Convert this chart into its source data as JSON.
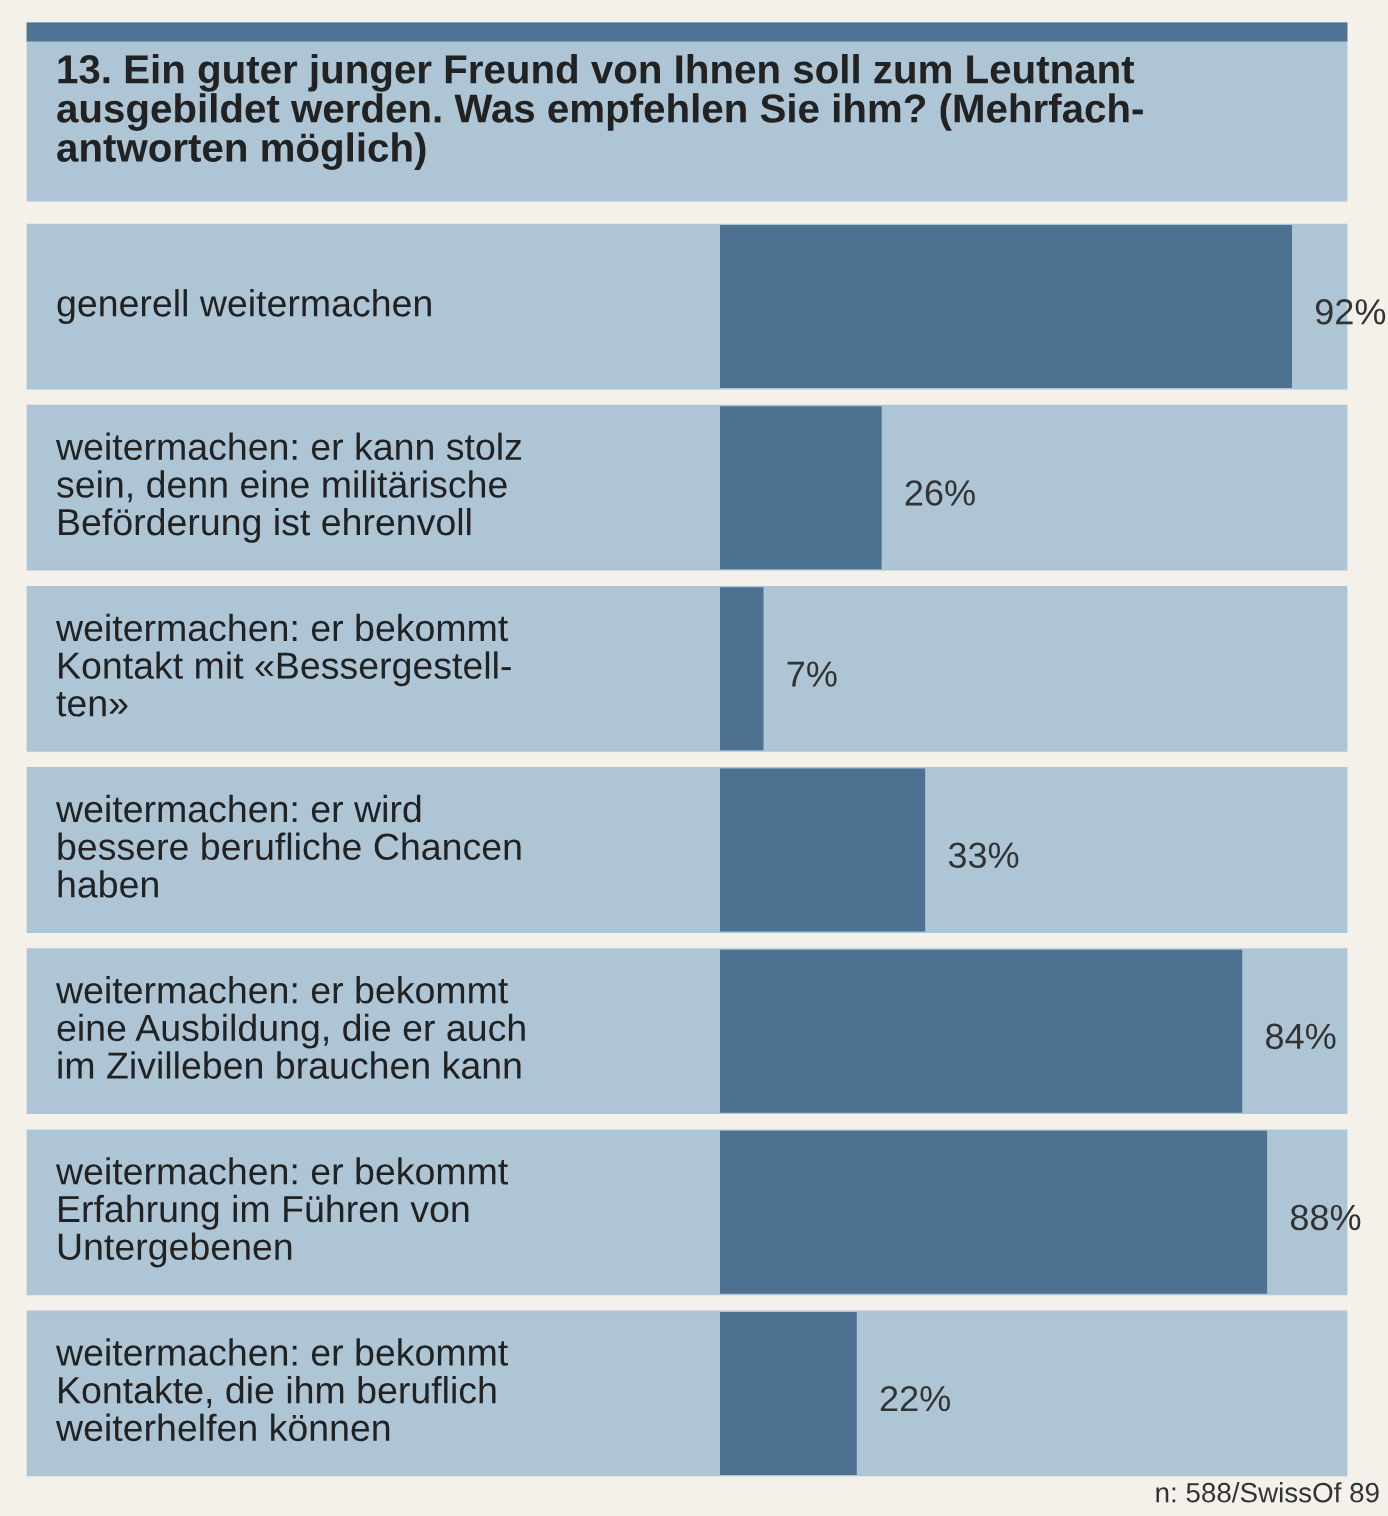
{
  "chart_data": {
    "type": "bar",
    "orientation": "horizontal",
    "title": "13. Ein guter junger Freund von Ihnen soll zum Leutnant\nausgebildet werden. Was empfehlen Sie ihm? (Mehrfach-\nantworten möglich)",
    "categories": [
      "generell weitermachen",
      "weitermachen: er kann stolz\nsein, denn eine militärische\nBeförderung ist ehrenvoll",
      "weitermachen: er bekommt\nKontakt mit «Bessergestell-\nten»",
      "weitermachen: er wird\nbessere berufliche Chancen\nhaben",
      "weitermachen: er bekommt\neine Ausbildung, die er auch\nim Zivilleben brauchen kann",
      "weitermachen: er bekommt\nErfahrung im Führen von\nUntergebenen",
      "weitermachen: er bekommt\nKontakte, die ihm beruflich\nweiterhelfen können"
    ],
    "values": [
      92,
      26,
      7,
      33,
      84,
      88,
      22
    ],
    "value_labels": [
      "92%",
      "26%",
      "7%",
      "33%",
      "84%",
      "88%",
      "22%"
    ],
    "color": "#4d7291",
    "tick_labels": false,
    "annotations": [
      "n: 588/SwissOf 89"
    ]
  }
}
